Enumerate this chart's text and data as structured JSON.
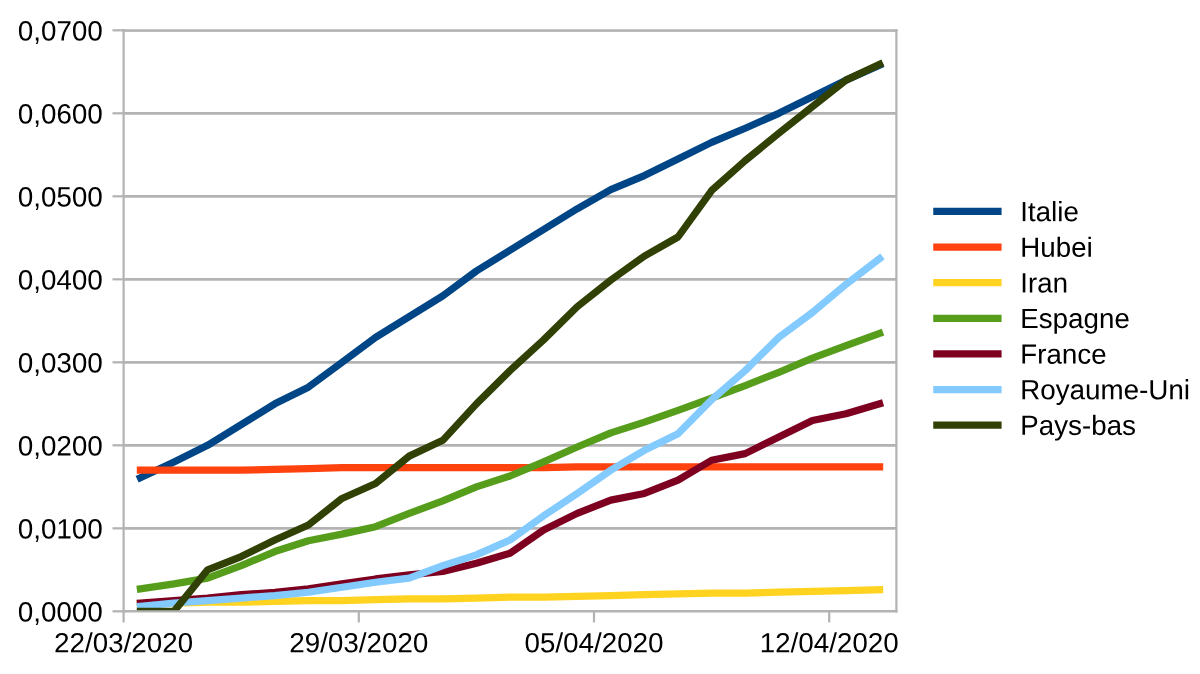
{
  "chart_data": {
    "type": "line",
    "x": [
      "2020-03-22T12:00",
      "2020-03-23T12:00",
      "2020-03-24T12:00",
      "2020-03-25T12:00",
      "2020-03-26T12:00",
      "2020-03-27T12:00",
      "2020-03-28T12:00",
      "2020-03-29T12:00",
      "2020-03-30T12:00",
      "2020-03-31T12:00",
      "2020-04-01T12:00",
      "2020-04-02T12:00",
      "2020-04-03T12:00",
      "2020-04-04T12:00",
      "2020-04-05T12:00",
      "2020-04-06T12:00",
      "2020-04-07T12:00",
      "2020-04-08T12:00",
      "2020-04-09T12:00",
      "2020-04-10T12:00",
      "2020-04-11T12:00",
      "2020-04-12T12:00",
      "2020-04-13T12:00"
    ],
    "series": [
      {
        "name": "Italie",
        "color": "#004586",
        "values": [
          0.0161,
          0.018,
          0.02,
          0.0225,
          0.025,
          0.027,
          0.03,
          0.033,
          0.0355,
          0.038,
          0.041,
          0.0435,
          0.046,
          0.0485,
          0.0508,
          0.0525,
          0.0545,
          0.0565,
          0.0582,
          0.06,
          0.062,
          0.064,
          0.0658
        ]
      },
      {
        "name": "Hubei",
        "color": "#ff420e",
        "values": [
          0.017,
          0.017,
          0.017,
          0.017,
          0.0171,
          0.0172,
          0.0173,
          0.0173,
          0.0173,
          0.0173,
          0.0173,
          0.0173,
          0.0173,
          0.0174,
          0.0174,
          0.0174,
          0.0174,
          0.0174,
          0.0174,
          0.0174,
          0.0174,
          0.0174,
          0.0174
        ]
      },
      {
        "name": "Iran",
        "color": "#ffd320",
        "values": [
          0.0009,
          0.001,
          0.0011,
          0.0011,
          0.0012,
          0.0013,
          0.0013,
          0.0014,
          0.0015,
          0.0015,
          0.0016,
          0.0017,
          0.0017,
          0.0018,
          0.0019,
          0.002,
          0.0021,
          0.0022,
          0.0022,
          0.0023,
          0.0024,
          0.0025,
          0.0026
        ]
      },
      {
        "name": "Espagne",
        "color": "#579d1c",
        "values": [
          0.0027,
          0.0033,
          0.004,
          0.0055,
          0.0072,
          0.0085,
          0.0093,
          0.0102,
          0.0118,
          0.0133,
          0.015,
          0.0163,
          0.018,
          0.0198,
          0.0215,
          0.0228,
          0.0242,
          0.0257,
          0.0272,
          0.0288,
          0.0305,
          0.032,
          0.0335
        ]
      },
      {
        "name": "France",
        "color": "#7e0021",
        "values": [
          0.001,
          0.0013,
          0.0016,
          0.002,
          0.0023,
          0.0027,
          0.0033,
          0.0039,
          0.0044,
          0.0048,
          0.0058,
          0.007,
          0.0098,
          0.0118,
          0.0134,
          0.0142,
          0.0158,
          0.0182,
          0.019,
          0.021,
          0.023,
          0.0238,
          0.025
        ]
      },
      {
        "name": "Royaume-Uni",
        "color": "#83caff",
        "values": [
          0.0006,
          0.001,
          0.0013,
          0.0016,
          0.0019,
          0.0023,
          0.0029,
          0.0035,
          0.004,
          0.0055,
          0.0068,
          0.0086,
          0.0115,
          0.0142,
          0.017,
          0.0194,
          0.0214,
          0.0255,
          0.029,
          0.033,
          0.036,
          0.0394,
          0.0425
        ]
      },
      {
        "name": "Pays-bas",
        "color": "#314004",
        "values": [
          0.0,
          0.0,
          0.005,
          0.0066,
          0.0086,
          0.0104,
          0.0136,
          0.0154,
          0.0187,
          0.0206,
          0.025,
          0.029,
          0.0327,
          0.0367,
          0.0399,
          0.0428,
          0.0451,
          0.0507,
          0.0543,
          0.0576,
          0.0608,
          0.064,
          0.0659
        ]
      }
    ],
    "xlim": [
      "2020-03-22",
      "2020-04-14"
    ],
    "xticks": [
      {
        "value": "2020-03-22",
        "label": "22/03/2020"
      },
      {
        "value": "2020-03-29",
        "label": "29/03/2020"
      },
      {
        "value": "2020-04-05",
        "label": "05/04/2020"
      },
      {
        "value": "2020-04-12",
        "label": "12/04/2020"
      }
    ],
    "ylim": [
      0,
      0.07
    ],
    "yticks": [
      {
        "value": 0,
        "label": "0,0000"
      },
      {
        "value": 0.01,
        "label": "0,0100"
      },
      {
        "value": 0.02,
        "label": "0,0200"
      },
      {
        "value": 0.03,
        "label": "0,0300"
      },
      {
        "value": 0.04,
        "label": "0,0400"
      },
      {
        "value": 0.05,
        "label": "0,0500"
      },
      {
        "value": 0.06,
        "label": "0,0600"
      },
      {
        "value": 0.07,
        "label": "0,0700"
      }
    ],
    "grid": "y",
    "legend": "right",
    "marker": "none",
    "line_style": "solid"
  }
}
